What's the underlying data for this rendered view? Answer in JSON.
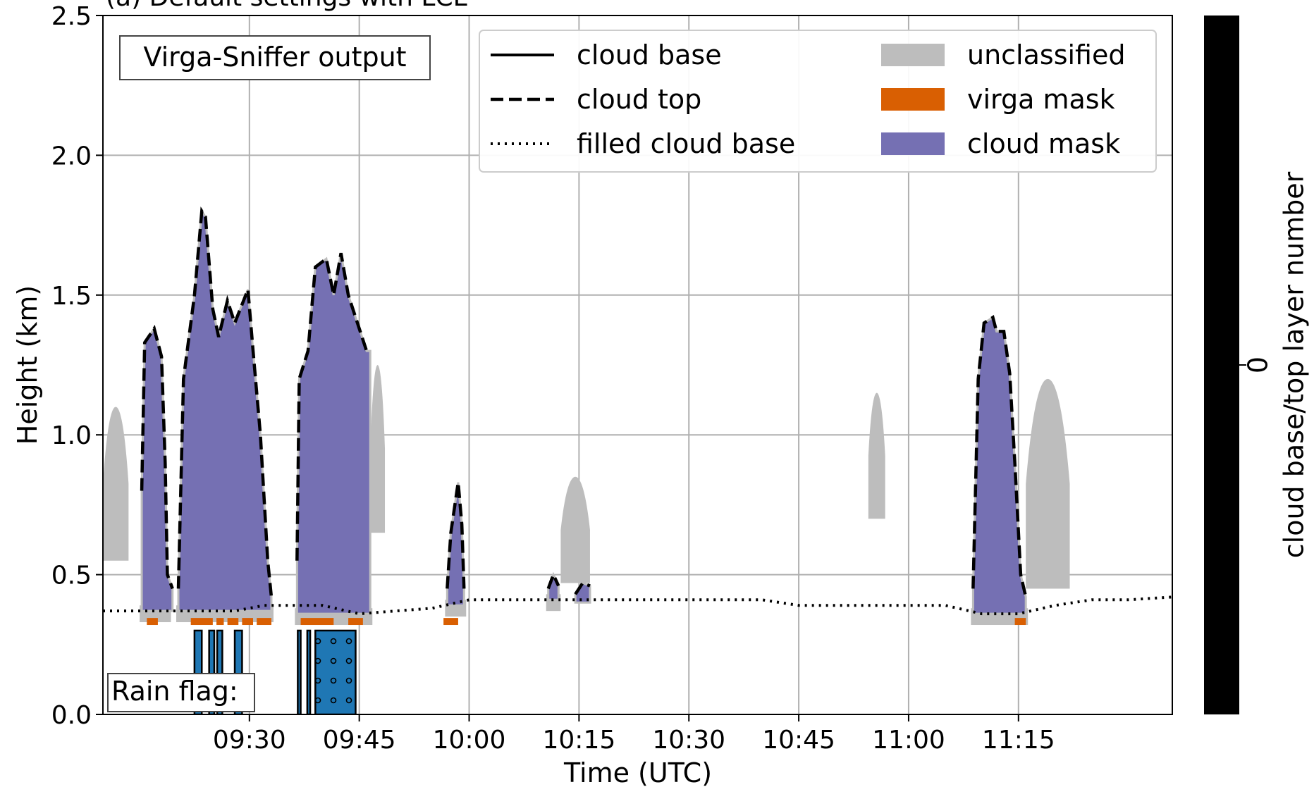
{
  "chart_data": {
    "type": "area",
    "title": "(a) Default settings with LCL",
    "xlabel": "Time (UTC)",
    "ylabel": "Height (km)",
    "colorbar_label": "cloud base/top layer number",
    "colorbar_ticks": [
      "0"
    ],
    "xlim": [
      "09:10",
      "11:36"
    ],
    "ylim": [
      0,
      2.5
    ],
    "xticks": [
      "09:30",
      "09:45",
      "10:00",
      "10:15",
      "10:30",
      "10:45",
      "11:00",
      "11:15"
    ],
    "yticks": [
      "0.0",
      "0.5",
      "1.0",
      "1.5",
      "2.0",
      "2.5"
    ],
    "grid": true,
    "legend_placement": "top-right",
    "annotations": {
      "box": "Virga-Sniffer output",
      "rain": "Rain flag:"
    },
    "colors": {
      "unclassified": "#bdbdbd",
      "virga_mask": "#d95f02",
      "cloud_mask": "#7570b3",
      "rain_flag": "#1f77b4",
      "colorbar": "#000000"
    },
    "legend": [
      {
        "label": "cloud base",
        "style": "solid"
      },
      {
        "label": "cloud top",
        "style": "dashed"
      },
      {
        "label": "filled cloud base",
        "style": "dotted"
      },
      {
        "label": "unclassified",
        "style": "patch",
        "color": "#bdbdbd"
      },
      {
        "label": "virga mask",
        "style": "patch",
        "color": "#d95f02"
      },
      {
        "label": "cloud mask",
        "style": "patch",
        "color": "#7570b3"
      }
    ],
    "filled_cloud_base": [
      [
        "09:10",
        0.37
      ],
      [
        "09:20",
        0.37
      ],
      [
        "09:28",
        0.37
      ],
      [
        "09:32",
        0.39
      ],
      [
        "09:40",
        0.39
      ],
      [
        "09:45",
        0.36
      ],
      [
        "09:50",
        0.37
      ],
      [
        "09:55",
        0.38
      ],
      [
        "10:00",
        0.41
      ],
      [
        "10:05",
        0.41
      ],
      [
        "10:10",
        0.41
      ],
      [
        "10:15",
        0.41
      ],
      [
        "10:20",
        0.41
      ],
      [
        "10:30",
        0.41
      ],
      [
        "10:40",
        0.41
      ],
      [
        "10:45",
        0.39
      ],
      [
        "10:50",
        0.39
      ],
      [
        "11:00",
        0.39
      ],
      [
        "11:05",
        0.39
      ],
      [
        "11:10",
        0.36
      ],
      [
        "11:15",
        0.36
      ],
      [
        "11:20",
        0.39
      ],
      [
        "11:25",
        0.41
      ],
      [
        "11:30",
        0.41
      ],
      [
        "11:36",
        0.42
      ]
    ],
    "cloud_top": [
      [
        [
          "09:15.3",
          0.8
        ],
        [
          "09:15.7",
          1.33
        ],
        [
          "09:17",
          1.38
        ],
        [
          "09:18",
          1.28
        ],
        [
          "09:18.5",
          0.9
        ],
        [
          "09:18.8",
          0.5
        ],
        [
          "09:19.5",
          0.45
        ]
      ],
      [
        [
          "09:20.3",
          0.45
        ],
        [
          "09:21",
          1.2
        ],
        [
          "09:22.5",
          1.5
        ],
        [
          "09:23.5",
          1.8
        ],
        [
          "09:24",
          1.78
        ],
        [
          "09:25",
          1.45
        ],
        [
          "09:25.8",
          1.35
        ],
        [
          "09:27",
          1.48
        ],
        [
          "09:28",
          1.4
        ],
        [
          "09:29.8",
          1.52
        ],
        [
          "09:30.5",
          1.3
        ],
        [
          "09:31.5",
          1.0
        ],
        [
          "09:32.5",
          0.55
        ],
        [
          "09:33",
          0.42
        ]
      ],
      [
        [
          "09:36.5",
          0.55
        ],
        [
          "09:36.8",
          1.2
        ],
        [
          "09:38",
          1.3
        ],
        [
          "09:39",
          1.6
        ],
        [
          "09:40.5",
          1.63
        ],
        [
          "09:41.5",
          1.5
        ],
        [
          "09:42.5",
          1.65
        ],
        [
          "09:43.5",
          1.5
        ],
        [
          "09:45",
          1.38
        ],
        [
          "09:46",
          1.3
        ],
        [
          "09:46.5",
          1.3
        ]
      ],
      [
        [
          "09:57",
          0.45
        ],
        [
          "09:57.5",
          0.65
        ],
        [
          "09:58.5",
          0.83
        ],
        [
          "09:59",
          0.68
        ],
        [
          "09:59.3",
          0.45
        ]
      ],
      [
        [
          "10:10.8",
          0.45
        ],
        [
          "10:11.5",
          0.5
        ],
        [
          "10:12.2",
          0.46
        ]
      ],
      [
        [
          "10:14.5",
          0.43
        ],
        [
          "10:15.5",
          0.47
        ],
        [
          "10:16.5",
          0.46
        ]
      ],
      [
        [
          "11:08.8",
          0.45
        ],
        [
          "11:09.5",
          1.2
        ],
        [
          "11:10.3",
          1.4
        ],
        [
          "11:11.5",
          1.42
        ],
        [
          "11:12",
          1.37
        ],
        [
          "11:13",
          1.37
        ],
        [
          "11:13.8",
          1.22
        ],
        [
          "11:14.5",
          0.9
        ],
        [
          "11:15.3",
          0.5
        ],
        [
          "11:16",
          0.42
        ]
      ]
    ],
    "cloud_mask_regions": [
      {
        "start": "09:15.3",
        "end": "09:19.0",
        "top_km": 1.38,
        "base_km": 0.37
      },
      {
        "start": "09:20.3",
        "end": "09:33.0",
        "top_km": 1.8,
        "base_km": 0.37
      },
      {
        "start": "09:36.5",
        "end": "09:46.5",
        "top_km": 1.65,
        "base_km": 0.36
      },
      {
        "start": "09:57.0",
        "end": "09:59.3",
        "top_km": 0.83,
        "base_km": 0.39
      },
      {
        "start": "10:10.8",
        "end": "10:12.2",
        "top_km": 0.5,
        "base_km": 0.41
      },
      {
        "start": "11:08.8",
        "end": "11:16.0",
        "top_km": 1.42,
        "base_km": 0.36
      }
    ],
    "unclassified_regions": [
      {
        "start": "09:10.0",
        "end": "09:13.5",
        "top_km": 1.1,
        "base_km": 0.55
      },
      {
        "start": "09:46.5",
        "end": "09:48.5",
        "top_km": 1.25,
        "base_km": 0.65
      },
      {
        "start": "10:12.5",
        "end": "10:16.5",
        "top_km": 0.85,
        "base_km": 0.47
      },
      {
        "start": "10:54.5",
        "end": "10:56.8",
        "top_km": 1.15,
        "base_km": 0.7
      },
      {
        "start": "11:16.0",
        "end": "11:22.0",
        "top_km": 1.2,
        "base_km": 0.45
      }
    ],
    "virga_mask_segments": [
      [
        "09:16.0",
        "09:17.5"
      ],
      [
        "09:22.0",
        "09:25.0"
      ],
      [
        "09:25.5",
        "09:26.5"
      ],
      [
        "09:27.0",
        "09:28.5"
      ],
      [
        "09:29.0",
        "09:30.5"
      ],
      [
        "09:31.0",
        "09:33.0"
      ],
      [
        "09:37.0",
        "09:41.5"
      ],
      [
        "09:43.5",
        "09:45.5"
      ],
      [
        "09:56.5",
        "09:58.5"
      ],
      [
        "11:14.5",
        "11:16.0"
      ]
    ],
    "rain_flag": [
      [
        "09:22.5",
        "09:23.5"
      ],
      [
        "09:24.5",
        "09:25.2"
      ],
      [
        "09:25.6",
        "09:26.3"
      ],
      [
        "09:28.0",
        "09:29.0"
      ],
      [
        "09:36.6",
        "09:37.0"
      ],
      [
        "09:37.9",
        "09:38.3"
      ],
      [
        "09:39.0",
        "09:44.5"
      ]
    ]
  }
}
